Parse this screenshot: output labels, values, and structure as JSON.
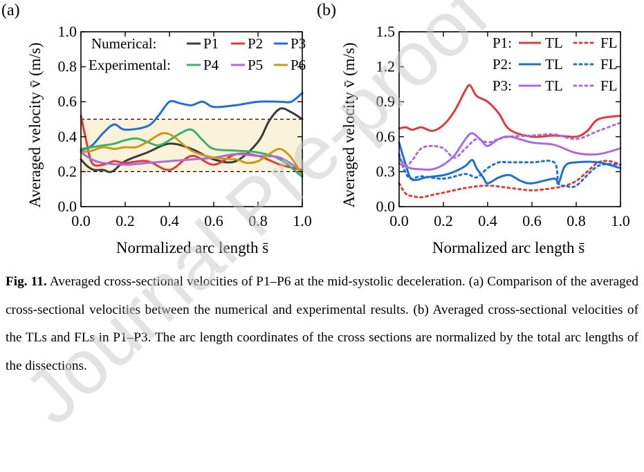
{
  "chart_data": [
    {
      "type": "line",
      "panel_label": "(a)",
      "xlabel": "Normalized arc length s̄",
      "ylabel": "Averaged velocity v̄ (m/s)",
      "xlim": [
        0.0,
        1.0
      ],
      "ylim": [
        0.0,
        1.0
      ],
      "xticks": [
        "0.0",
        "0.2",
        "0.4",
        "0.6",
        "0.8",
        "1.0"
      ],
      "yticks": [
        "0.0",
        "0.2",
        "0.4",
        "0.6",
        "0.8",
        "1.0"
      ],
      "grid": false,
      "band": {
        "from": 0.2,
        "to": 0.5,
        "color": "#fbf3d9"
      },
      "legend": {
        "position": "top",
        "numerical_label": "Numerical:",
        "experimental_label": "Experimental:"
      },
      "series": [
        {
          "name": "P1",
          "group": "numerical",
          "color": "#3a3a3a",
          "x": [
            0,
            0.03,
            0.06,
            0.1,
            0.14,
            0.2,
            0.3,
            0.4,
            0.5,
            0.6,
            0.7,
            0.8,
            0.85,
            0.9,
            0.95,
            1.0
          ],
          "y": [
            0.27,
            0.23,
            0.21,
            0.21,
            0.2,
            0.26,
            0.31,
            0.36,
            0.33,
            0.27,
            0.26,
            0.37,
            0.49,
            0.56,
            0.54,
            0.5
          ]
        },
        {
          "name": "P2",
          "group": "numerical",
          "color": "#e03a3a",
          "x": [
            0,
            0.02,
            0.05,
            0.1,
            0.15,
            0.2,
            0.3,
            0.4,
            0.5,
            0.6,
            0.7,
            0.8,
            0.9,
            1.0
          ],
          "y": [
            0.52,
            0.4,
            0.25,
            0.24,
            0.26,
            0.25,
            0.26,
            0.21,
            0.29,
            0.24,
            0.3,
            0.29,
            0.24,
            0.21
          ]
        },
        {
          "name": "P3",
          "group": "numerical",
          "color": "#1f6fd1",
          "x": [
            0,
            0.05,
            0.1,
            0.15,
            0.2,
            0.3,
            0.35,
            0.4,
            0.45,
            0.5,
            0.55,
            0.6,
            0.7,
            0.8,
            0.9,
            0.95,
            1.0
          ],
          "y": [
            0.32,
            0.35,
            0.42,
            0.47,
            0.44,
            0.46,
            0.52,
            0.6,
            0.59,
            0.58,
            0.6,
            0.57,
            0.58,
            0.6,
            0.6,
            0.6,
            0.65
          ]
        },
        {
          "name": "P4",
          "group": "experimental",
          "color": "#34b36b",
          "x": [
            0,
            0.05,
            0.1,
            0.15,
            0.2,
            0.25,
            0.3,
            0.35,
            0.4,
            0.45,
            0.5,
            0.55,
            0.6,
            0.7,
            0.8,
            0.9,
            1.0
          ],
          "y": [
            0.33,
            0.34,
            0.35,
            0.36,
            0.38,
            0.39,
            0.37,
            0.35,
            0.38,
            0.42,
            0.44,
            0.38,
            0.33,
            0.32,
            0.31,
            0.27,
            0.17
          ]
        },
        {
          "name": "P5",
          "group": "experimental",
          "color": "#a86ce0",
          "x": [
            0,
            0.05,
            0.1,
            0.2,
            0.3,
            0.4,
            0.5,
            0.6,
            0.7,
            0.8,
            0.9,
            1.0
          ],
          "y": [
            0.31,
            0.27,
            0.25,
            0.24,
            0.25,
            0.26,
            0.27,
            0.28,
            0.3,
            0.29,
            0.28,
            0.2
          ]
        },
        {
          "name": "P6",
          "group": "experimental",
          "color": "#c69a14",
          "x": [
            0,
            0.05,
            0.1,
            0.15,
            0.2,
            0.25,
            0.3,
            0.35,
            0.38,
            0.42,
            0.5,
            0.6,
            0.7,
            0.75,
            0.8,
            0.85,
            0.9,
            0.95,
            1.0
          ],
          "y": [
            0.31,
            0.32,
            0.34,
            0.33,
            0.34,
            0.34,
            0.37,
            0.41,
            0.42,
            0.4,
            0.32,
            0.28,
            0.27,
            0.25,
            0.26,
            0.3,
            0.33,
            0.28,
            0.18
          ]
        }
      ]
    },
    {
      "type": "line",
      "panel_label": "(b)",
      "xlabel": "Normalized arc length s̄",
      "ylabel": "Averaged velocity v̄ (m/s)",
      "xlim": [
        0.0,
        1.0
      ],
      "ylim": [
        0.0,
        1.5
      ],
      "xticks": [
        "0.0",
        "0.2",
        "0.4",
        "0.6",
        "0.8",
        "1.0"
      ],
      "yticks": [
        "0.0",
        "0.3",
        "0.6",
        "0.9",
        "1.2",
        "1.5"
      ],
      "grid": false,
      "legend": {
        "position": "top-right",
        "rows": [
          "P1:",
          "P2:",
          "P3:"
        ]
      },
      "series": [
        {
          "name": "TL",
          "row": "P1:",
          "style": "solid",
          "color": "#e03a3a",
          "x": [
            0,
            0.03,
            0.06,
            0.1,
            0.15,
            0.2,
            0.25,
            0.3,
            0.32,
            0.35,
            0.4,
            0.45,
            0.5,
            0.6,
            0.7,
            0.8,
            0.85,
            0.9,
            1.0
          ],
          "y": [
            0.67,
            0.68,
            0.66,
            0.68,
            0.65,
            0.7,
            0.82,
            1.0,
            1.04,
            0.95,
            0.9,
            0.8,
            0.66,
            0.6,
            0.61,
            0.6,
            0.65,
            0.75,
            0.78
          ]
        },
        {
          "name": "FL",
          "row": "P1:",
          "style": "dotted",
          "color": "#e03a3a",
          "x": [
            0,
            0.03,
            0.06,
            0.1,
            0.15,
            0.2,
            0.3,
            0.4,
            0.5,
            0.6,
            0.7,
            0.75,
            0.8,
            0.85,
            0.9,
            0.95,
            1.0
          ],
          "y": [
            0.2,
            0.11,
            0.09,
            0.08,
            0.1,
            0.12,
            0.16,
            0.18,
            0.16,
            0.14,
            0.16,
            0.18,
            0.22,
            0.3,
            0.38,
            0.39,
            0.36
          ]
        },
        {
          "name": "TL",
          "row": "P2:",
          "style": "solid",
          "color": "#1f6fd1",
          "x": [
            0,
            0.02,
            0.05,
            0.08,
            0.12,
            0.2,
            0.25,
            0.3,
            0.33,
            0.35,
            0.38,
            0.4,
            0.45,
            0.5,
            0.55,
            0.6,
            0.7,
            0.72,
            0.75,
            0.8,
            0.9,
            1.0
          ],
          "y": [
            0.55,
            0.42,
            0.25,
            0.23,
            0.25,
            0.27,
            0.3,
            0.35,
            0.4,
            0.33,
            0.25,
            0.2,
            0.25,
            0.27,
            0.22,
            0.2,
            0.24,
            0.2,
            0.35,
            0.38,
            0.38,
            0.33
          ]
        },
        {
          "name": "FL",
          "row": "P2:",
          "style": "dotted",
          "color": "#1f6fd1",
          "x": [
            0,
            0.02,
            0.05,
            0.1,
            0.2,
            0.3,
            0.35,
            0.4,
            0.45,
            0.5,
            0.6,
            0.7,
            0.72,
            0.75,
            0.8,
            0.9,
            1.0
          ],
          "y": [
            0.45,
            0.33,
            0.24,
            0.26,
            0.24,
            0.28,
            0.25,
            0.33,
            0.38,
            0.38,
            0.38,
            0.38,
            0.2,
            0.18,
            0.18,
            0.35,
            0.36
          ]
        },
        {
          "name": "TL",
          "row": "P3:",
          "style": "solid",
          "color": "#a86ce0",
          "x": [
            0,
            0.05,
            0.1,
            0.15,
            0.2,
            0.25,
            0.3,
            0.33,
            0.37,
            0.4,
            0.45,
            0.5,
            0.6,
            0.7,
            0.8,
            0.9,
            1.0
          ],
          "y": [
            0.37,
            0.33,
            0.32,
            0.32,
            0.36,
            0.44,
            0.58,
            0.63,
            0.57,
            0.52,
            0.58,
            0.6,
            0.55,
            0.53,
            0.46,
            0.45,
            0.5
          ]
        },
        {
          "name": "FL",
          "row": "P3:",
          "style": "dotted",
          "color": "#a86ce0",
          "x": [
            0,
            0.03,
            0.06,
            0.1,
            0.15,
            0.2,
            0.25,
            0.3,
            0.35,
            0.4,
            0.45,
            0.5,
            0.6,
            0.7,
            0.8,
            0.9,
            1.0
          ],
          "y": [
            0.43,
            0.35,
            0.4,
            0.5,
            0.52,
            0.5,
            0.42,
            0.5,
            0.58,
            0.55,
            0.58,
            0.6,
            0.61,
            0.62,
            0.58,
            0.65,
            0.72
          ]
        }
      ]
    }
  ],
  "caption": {
    "label": "Fig. 11.",
    "text": " Averaged cross-sectional velocities of P1–P6 at the mid-systolic deceleration. (a) Comparison of the averaged cross-sectional velocities between the numerical and experimental results. (b) Averaged cross-sectional velocities of the TLs and FLs in P1–P3. The arc length coordinates of the cross sections are normalized by the total arc lengths of the dissections."
  },
  "watermark": {
    "text": "Journal Pre-proof",
    "color": "#c8c8c8"
  }
}
